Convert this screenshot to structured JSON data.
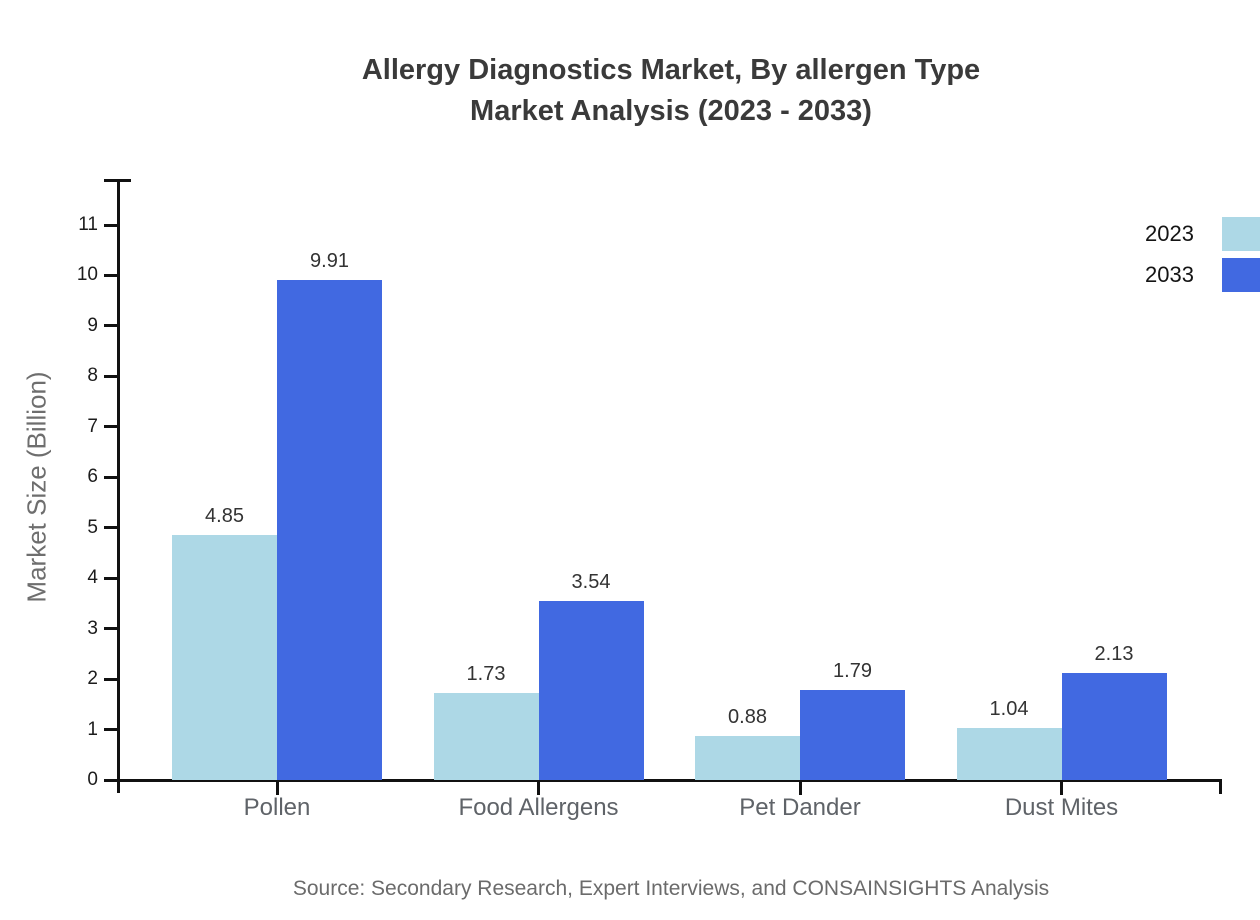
{
  "title": {
    "line1": "Allergy Diagnostics Market, By allergen Type",
    "line2": "Market Analysis (2023 - 2033)"
  },
  "source": "Source: Secondary Research, Expert Interviews, and CONSAINSIGHTS Analysis",
  "colors": {
    "series_2023": "#ADD8E6",
    "series_2033": "#4169E1",
    "axis": "#111111",
    "title_text": "#3a3a3a",
    "muted_text": "#6e6e6e"
  },
  "chart_data": {
    "type": "bar",
    "categories": [
      "Pollen",
      "Food Allergens",
      "Pet Dander",
      "Dust Mites"
    ],
    "series": [
      {
        "name": "2023",
        "color": "#ADD8E6",
        "values": [
          4.85,
          1.73,
          0.88,
          1.04
        ]
      },
      {
        "name": "2033",
        "color": "#4169E1",
        "values": [
          9.91,
          3.54,
          1.79,
          2.13
        ]
      }
    ],
    "title": "Allergy Diagnostics Market, By allergen Type Market Analysis (2023 - 2033)",
    "xlabel": "",
    "ylabel": "Market Size (Billion)",
    "ylim": [
      0,
      11
    ],
    "yticks": [
      0,
      1,
      2,
      3,
      4,
      5,
      6,
      7,
      8,
      9,
      10,
      11
    ],
    "grid": false,
    "legend_position": "top-right",
    "value_labels": true,
    "value_label_format": "0.00"
  }
}
